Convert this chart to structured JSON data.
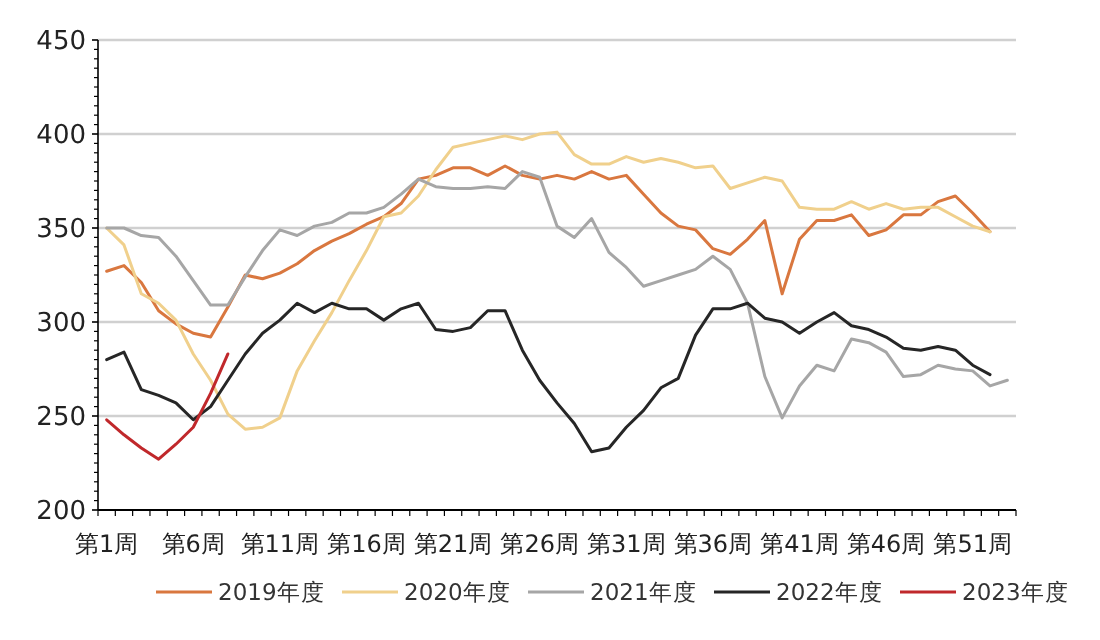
{
  "chart_data": {
    "type": "line",
    "categories": [
      "第1周",
      null,
      null,
      null,
      null,
      "第6周",
      null,
      null,
      null,
      null,
      "第11周",
      null,
      null,
      null,
      null,
      "第16周",
      null,
      null,
      null,
      null,
      "第21周",
      null,
      null,
      null,
      null,
      "第26周",
      null,
      null,
      null,
      null,
      "第31周",
      null,
      null,
      null,
      null,
      "第36周",
      null,
      null,
      null,
      null,
      "第41周",
      null,
      null,
      null,
      null,
      "第46周",
      null,
      null,
      null,
      null,
      "第51周",
      null,
      null
    ],
    "series": [
      {
        "name": "2019年度",
        "color": "#d9773f",
        "values": [
          327,
          330,
          321,
          306,
          299,
          294,
          292,
          308,
          325,
          323,
          326,
          331,
          338,
          343,
          347,
          352,
          356,
          363,
          376,
          378,
          382,
          382,
          378,
          383,
          378,
          376,
          378,
          376,
          380,
          376,
          378,
          368,
          358,
          351,
          349,
          339,
          336,
          344,
          354,
          315,
          344,
          354,
          354,
          357,
          346,
          349,
          357,
          357,
          364,
          367,
          358,
          348,
          null
        ]
      },
      {
        "name": "2020年度",
        "color": "#f0d08c",
        "values": [
          350,
          341,
          315,
          310,
          301,
          283,
          269,
          251,
          243,
          244,
          249,
          274,
          290,
          305,
          322,
          338,
          356,
          358,
          367,
          381,
          393,
          395,
          397,
          399,
          397,
          400,
          401,
          389,
          384,
          384,
          388,
          385,
          387,
          385,
          382,
          383,
          371,
          374,
          377,
          375,
          361,
          360,
          360,
          364,
          360,
          363,
          360,
          361,
          361,
          356,
          351,
          348,
          null
        ]
      },
      {
        "name": "2021年度",
        "color": "#a6a6a6",
        "values": [
          350,
          350,
          346,
          345,
          335,
          322,
          309,
          309,
          324,
          338,
          349,
          346,
          351,
          353,
          358,
          358,
          361,
          368,
          376,
          372,
          371,
          371,
          372,
          371,
          380,
          377,
          351,
          345,
          355,
          337,
          329,
          319,
          322,
          325,
          328,
          335,
          328,
          310,
          271,
          249,
          266,
          277,
          274,
          291,
          289,
          284,
          271,
          272,
          277,
          275,
          274,
          266,
          269
        ]
      },
      {
        "name": "2022年度",
        "color": "#262626",
        "values": [
          280,
          284,
          264,
          261,
          257,
          248,
          255,
          269,
          283,
          294,
          301,
          310,
          305,
          310,
          307,
          307,
          301,
          307,
          310,
          296,
          295,
          297,
          306,
          306,
          285,
          269,
          257,
          246,
          231,
          233,
          244,
          253,
          265,
          270,
          293,
          307,
          307,
          310,
          302,
          300,
          294,
          300,
          305,
          298,
          296,
          292,
          286,
          285,
          287,
          285,
          277,
          272,
          null
        ]
      },
      {
        "name": "2023年度",
        "color": "#c0282b",
        "values": [
          248,
          240,
          233,
          227,
          235,
          244,
          262,
          283,
          null,
          null,
          null,
          null,
          null,
          null,
          null,
          null,
          null,
          null,
          null,
          null,
          null,
          null,
          null,
          null,
          null,
          null,
          null,
          null,
          null,
          null,
          null,
          null,
          null,
          null,
          null,
          null,
          null,
          null,
          null,
          null,
          null,
          null,
          null,
          null,
          null,
          null,
          null,
          null,
          null,
          null,
          null,
          null,
          null
        ]
      }
    ],
    "ylim": [
      200,
      450
    ],
    "yticks": [
      200,
      250,
      300,
      350,
      400,
      450
    ],
    "grid": "y",
    "legend": "bottom"
  }
}
